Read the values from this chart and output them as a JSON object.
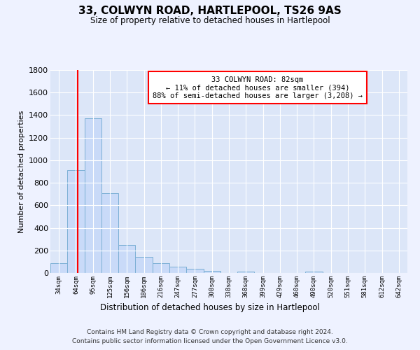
{
  "title": "33, COLWYN ROAD, HARTLEPOOL, TS26 9AS",
  "subtitle": "Size of property relative to detached houses in Hartlepool",
  "xlabel": "Distribution of detached houses by size in Hartlepool",
  "ylabel": "Number of detached properties",
  "bar_labels": [
    "34sqm",
    "64sqm",
    "95sqm",
    "125sqm",
    "156sqm",
    "186sqm",
    "216sqm",
    "247sqm",
    "277sqm",
    "308sqm",
    "338sqm",
    "368sqm",
    "399sqm",
    "429sqm",
    "460sqm",
    "490sqm",
    "520sqm",
    "551sqm",
    "581sqm",
    "612sqm",
    "642sqm"
  ],
  "bar_values": [
    90,
    910,
    1370,
    710,
    250,
    145,
    90,
    55,
    35,
    20,
    0,
    15,
    0,
    0,
    0,
    10,
    0,
    0,
    0,
    0,
    0
  ],
  "bar_color": "#c9daf8",
  "bar_edge_color": "#7bafd4",
  "ylim": [
    0,
    1800
  ],
  "yticks": [
    0,
    200,
    400,
    600,
    800,
    1000,
    1200,
    1400,
    1600,
    1800
  ],
  "vline_x": 1.6,
  "vline_color": "red",
  "annotation_title": "33 COLWYN ROAD: 82sqm",
  "annotation_line1": "← 11% of detached houses are smaller (394)",
  "annotation_line2": "88% of semi-detached houses are larger (3,208) →",
  "annotation_box_color": "white",
  "annotation_box_edge": "red",
  "footer_line1": "Contains HM Land Registry data © Crown copyright and database right 2024.",
  "footer_line2": "Contains public sector information licensed under the Open Government Licence v3.0.",
  "fig_bg_color": "#eef2ff",
  "plot_bg_color": "#dce6f8"
}
